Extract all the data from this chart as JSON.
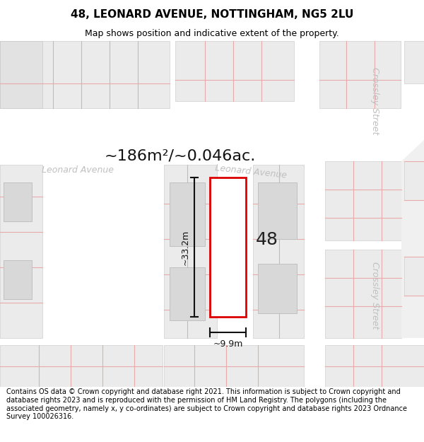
{
  "title_line1": "48, LEONARD AVENUE, NOTTINGHAM, NG5 2LU",
  "title_line2": "Map shows position and indicative extent of the property.",
  "area_text": "~186m²/~0.046ac.",
  "width_label": "~9.9m",
  "height_label": "~33.2m",
  "number_label": "48",
  "footer_text": "Contains OS data © Crown copyright and database right 2021. This information is subject to Crown copyright and database rights 2023 and is reproduced with the permission of HM Land Registry. The polygons (including the associated geometry, namely x, y co-ordinates) are subject to Crown copyright and database rights 2023 Ordnance Survey 100026316.",
  "map_bg": "#f7f7f7",
  "page_bg": "#ffffff",
  "parcel_fill": "#e8e8e8",
  "parcel_edge": "#cccccc",
  "building_fill": "#d8d8d8",
  "building_edge": "#bbbbbb",
  "road_fill": "#ffffff",
  "pink_line": "#e8aaaa",
  "red_outline": "#dd0000",
  "black": "#111111",
  "street_color": "#c0c0c0",
  "title_fontsize": 11,
  "subtitle_fontsize": 9,
  "area_fontsize": 16,
  "num_fontsize": 18,
  "dim_fontsize": 9,
  "street_fontsize": 9,
  "footer_fontsize": 7.0
}
